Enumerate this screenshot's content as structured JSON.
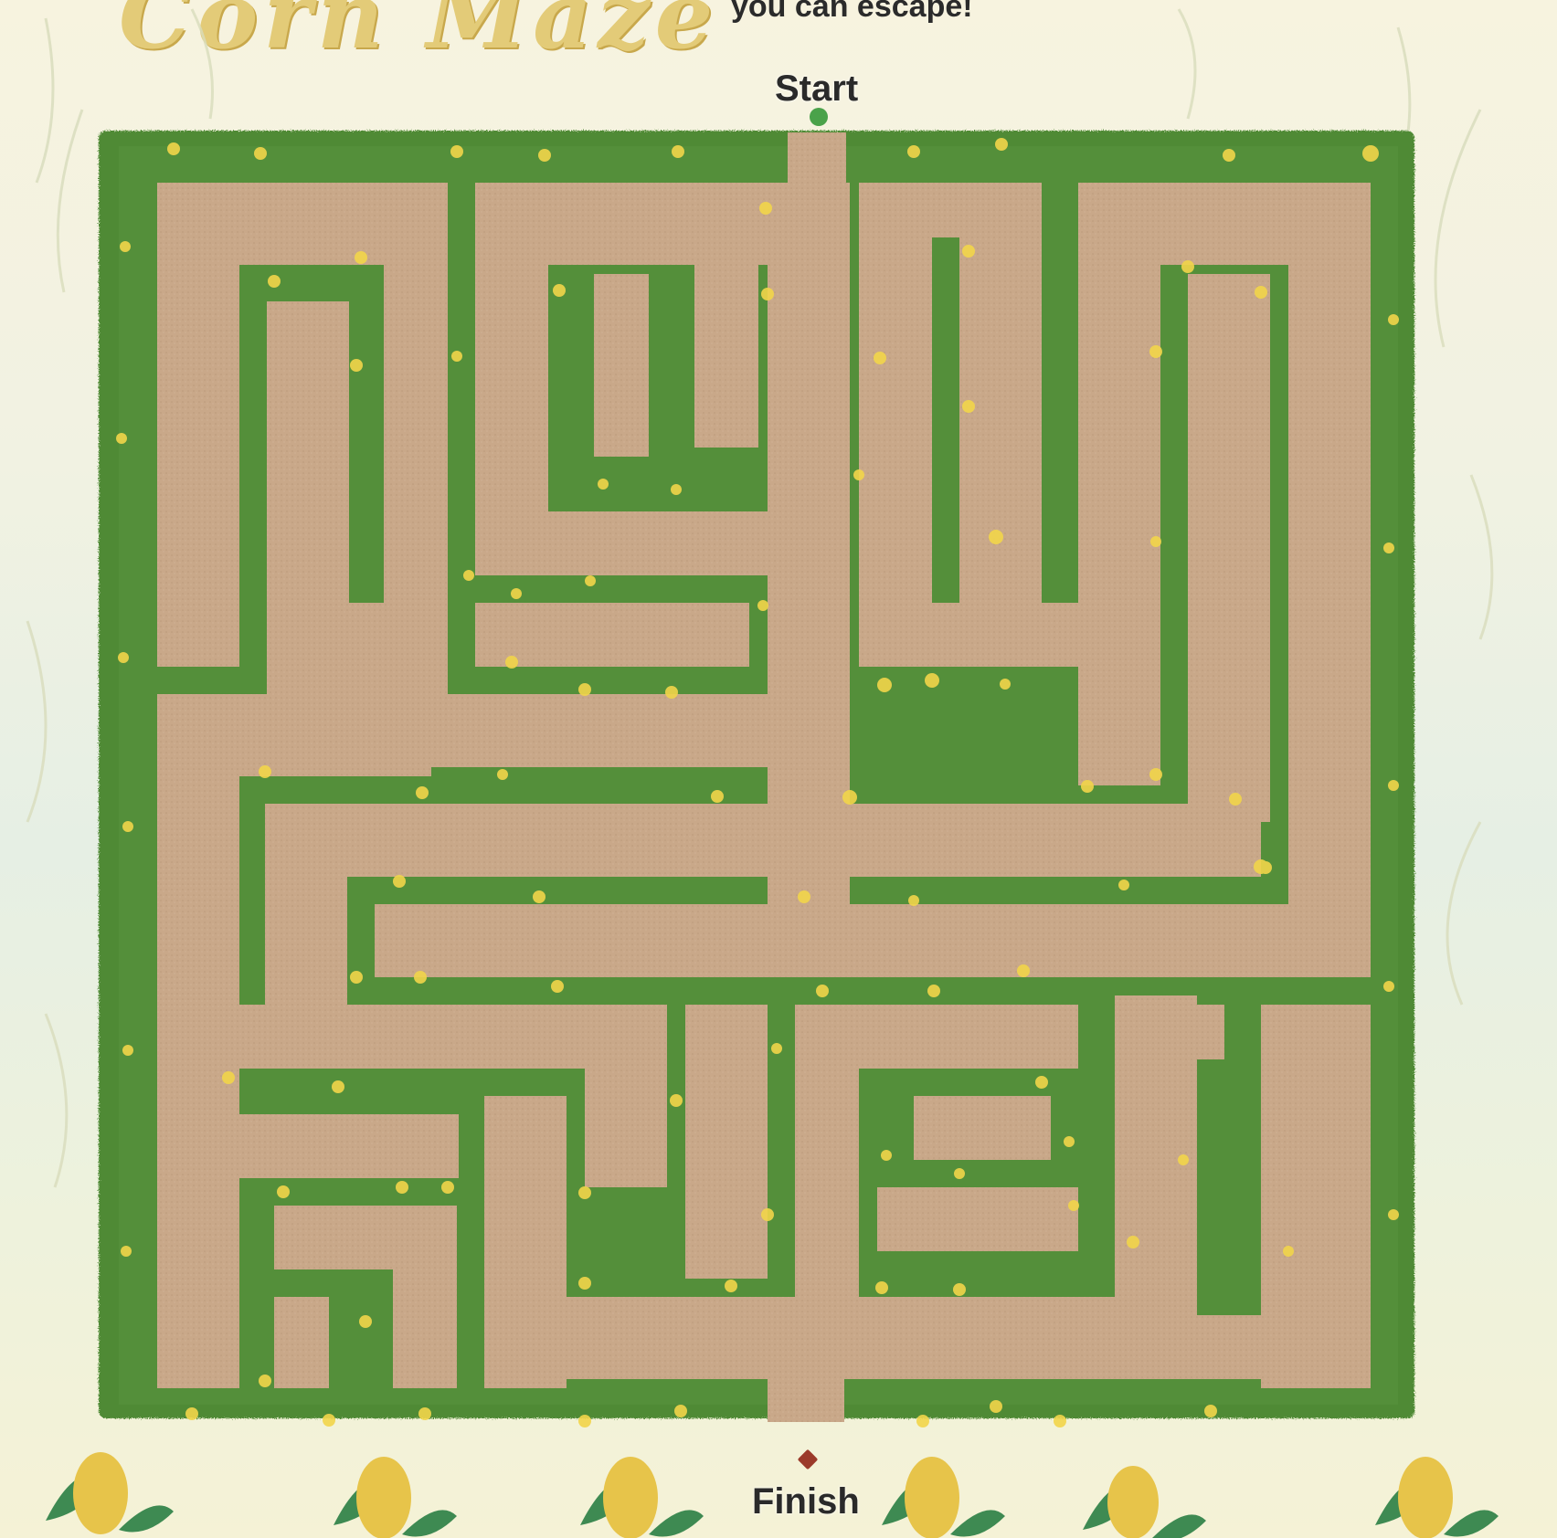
{
  "header": {
    "title": "Corn Maze",
    "subtitle": "you can escape!"
  },
  "maze": {
    "start_label": "Start",
    "finish_label": "Finish"
  },
  "colors": {
    "hedge": "#4f8a36",
    "hedge_dark": "#3d7229",
    "path": "#c9a889",
    "corn_kernel": "#f2d54a",
    "background": "#eef2dc"
  },
  "icons": [
    "corn-icon",
    "start-marker-icon",
    "finish-marker-icon"
  ]
}
